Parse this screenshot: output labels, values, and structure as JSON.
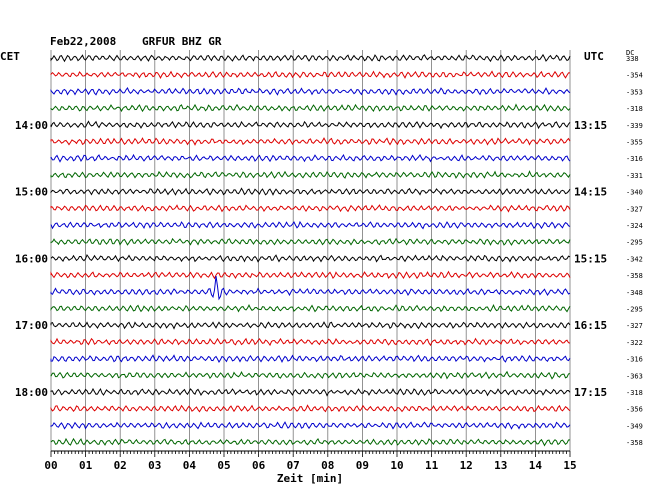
{
  "header": {
    "date": "Feb22,2008",
    "station": "GRFUR BHZ GR",
    "left_tz": "CET",
    "right_tz": "UTC",
    "dc_label": "DC"
  },
  "chart_data": {
    "type": "line",
    "title": "Feb22,2008 GRFUR BHZ GR",
    "xlabel": "Zeit [min]",
    "xlim": [
      0,
      15
    ],
    "x_ticks": [
      "00",
      "01",
      "02",
      "03",
      "04",
      "05",
      "06",
      "07",
      "08",
      "09",
      "10",
      "11",
      "12",
      "13",
      "14",
      "15"
    ],
    "grid": true,
    "trace_colors": [
      "#000000",
      "#dd0000",
      "#0000cc",
      "#006600"
    ],
    "traces": [
      {
        "dc": "338"
      },
      {
        "dc": "-354"
      },
      {
        "dc": "-353"
      },
      {
        "dc": "-318"
      },
      {
        "dc": "-339"
      },
      {
        "dc": "-355"
      },
      {
        "dc": "-316"
      },
      {
        "dc": "-331"
      },
      {
        "dc": "-340"
      },
      {
        "dc": "-327"
      },
      {
        "dc": "-324"
      },
      {
        "dc": "-295"
      },
      {
        "dc": "-342"
      },
      {
        "dc": "-358"
      },
      {
        "dc": "-348",
        "event_minute": 4.8
      },
      {
        "dc": "-295"
      },
      {
        "dc": "-327"
      },
      {
        "dc": "-322"
      },
      {
        "dc": "-316"
      },
      {
        "dc": "-363"
      },
      {
        "dc": "-318"
      },
      {
        "dc": "-356"
      },
      {
        "dc": "-349"
      },
      {
        "dc": "-358"
      }
    ],
    "hour_labels": [
      {
        "trace": 4,
        "cet": "14:00",
        "utc": "13:15"
      },
      {
        "trace": 8,
        "cet": "15:00",
        "utc": "14:15"
      },
      {
        "trace": 12,
        "cet": "16:00",
        "utc": "15:15"
      },
      {
        "trace": 16,
        "cet": "17:00",
        "utc": "16:15"
      },
      {
        "trace": 20,
        "cet": "18:00",
        "utc": "17:15"
      }
    ]
  }
}
